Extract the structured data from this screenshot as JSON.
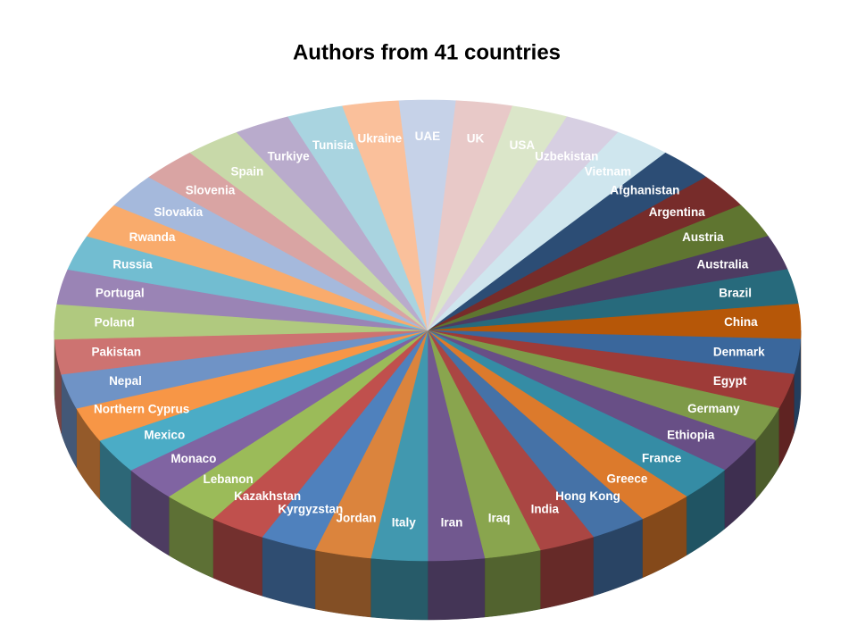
{
  "chart_data": {
    "type": "pie3d",
    "title": "Authors from 41  countries",
    "categories": [
      "Afghanistan",
      "Argentina",
      "Austria",
      "Australia",
      "Brazil",
      "China",
      "Denmark",
      "Egypt",
      "Germany",
      "Ethiopia",
      "France",
      "Greece",
      "Hong Kong",
      "India",
      "Iraq",
      "Iran",
      "Italy",
      "Jordan",
      "Kyrgyzstan",
      "Kazakhstan",
      "Lebanon",
      "Monaco",
      "Mexico",
      "Northern Cyprus",
      "Nepal",
      "Pakistan",
      "Poland",
      "Portugal",
      "Russia",
      "Rwanda",
      "Slovakia",
      "Slovenia",
      "Spain",
      "Turkiye",
      "Tunisia",
      "Ukraine",
      "UAE",
      "UK",
      "USA",
      "Uzbekistan",
      "Vietnam"
    ],
    "values": [
      1,
      1,
      1,
      1,
      1,
      1,
      1,
      1,
      1,
      1,
      1,
      1,
      1,
      1,
      1,
      1,
      1,
      1,
      1,
      1,
      1,
      1,
      1,
      1,
      1,
      1,
      1,
      1,
      1,
      1,
      1,
      1,
      1,
      1,
      1,
      1,
      1,
      1,
      1,
      1,
      1
    ],
    "colors": [
      "#2c4d75",
      "#772c2a",
      "#5f7530",
      "#4d3b62",
      "#276a7c",
      "#b65708",
      "#3a679c",
      "#9e3b38",
      "#7e9a48",
      "#684f86",
      "#358ca5",
      "#dc7a2c",
      "#4572a7",
      "#aa4643",
      "#89a54e",
      "#71588f",
      "#4198af",
      "#db843d",
      "#4f81bd",
      "#c0504d",
      "#9bbb59",
      "#8064a2",
      "#4bacc6",
      "#f79646",
      "#6f93c6",
      "#cd7371",
      "#b0c97f",
      "#9a84b5",
      "#72bdd1",
      "#f9ab6c",
      "#a5b9dc",
      "#d9a4a3",
      "#c8d9a9",
      "#b9abcc",
      "#a9d4e0",
      "#fac09b",
      "#c6d2e8",
      "#e8c9c8",
      "#dbe6c9",
      "#d7cfe2",
      "#cfe6ee"
    ]
  }
}
